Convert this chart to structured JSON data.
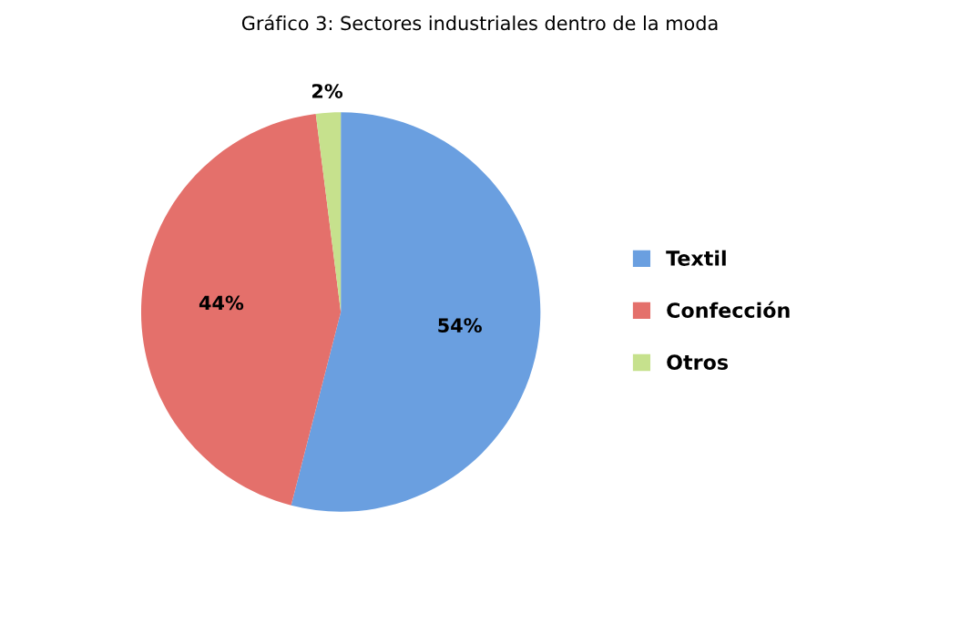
{
  "chart_data": {
    "type": "pie",
    "title": "Gráfico 3: Sectores industriales dentro de la moda",
    "categories": [
      "Textil",
      "Confección",
      "Otros"
    ],
    "values": [
      54,
      44,
      2
    ],
    "colors": [
      "#6a9fe0",
      "#e4706b",
      "#c6e18d"
    ],
    "value_labels": [
      "54%",
      "44%",
      "2%"
    ],
    "legend": "right"
  }
}
